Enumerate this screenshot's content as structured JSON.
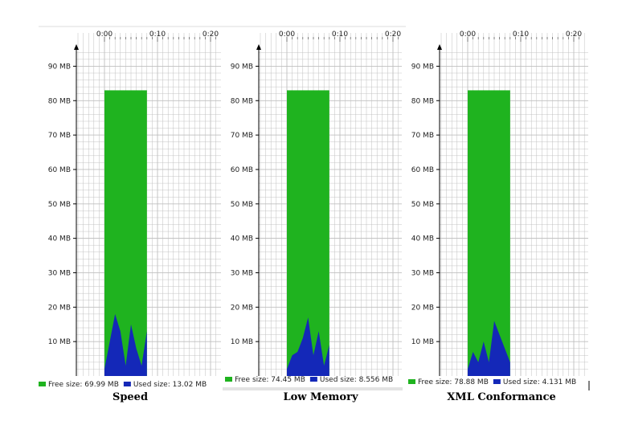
{
  "colors": {
    "free": "#1fb31f",
    "used": "#1428b8",
    "grid": "#bfbfbf",
    "axis": "#000000"
  },
  "chart_data": [
    {
      "type": "area",
      "caption": "Speed",
      "x_ticks": [
        "0:00",
        "0:10",
        "0:20"
      ],
      "y_ticks": [
        "10 MB",
        "20 MB",
        "30 MB",
        "40 MB",
        "50 MB",
        "60 MB",
        "70 MB",
        "80 MB",
        "90 MB"
      ],
      "ylim": [
        0,
        95
      ],
      "xlim": [
        0,
        20
      ],
      "total_heap_mb": 83,
      "series": [
        {
          "name": "Free size",
          "legend": "Free size: 69.99 MB"
        },
        {
          "name": "Used size",
          "legend": "Used size: 13.02 MB",
          "x": [
            0,
            1,
            2,
            3,
            4,
            5,
            6,
            7,
            8
          ],
          "y": [
            2,
            10,
            18,
            13,
            3,
            15,
            8,
            3,
            13
          ]
        }
      ]
    },
    {
      "type": "area",
      "caption": "Low Memory",
      "x_ticks": [
        "0:00",
        "0:10",
        "0:20"
      ],
      "y_ticks": [
        "10 MB",
        "20 MB",
        "30 MB",
        "40 MB",
        "50 MB",
        "60 MB",
        "70 MB",
        "80 MB",
        "90 MB"
      ],
      "ylim": [
        0,
        95
      ],
      "xlim": [
        0,
        20
      ],
      "total_heap_mb": 83,
      "series": [
        {
          "name": "Free size",
          "legend": "Free size: 74.45 MB"
        },
        {
          "name": "Used size",
          "legend": "Used size: 8.556 MB",
          "x": [
            0,
            1,
            2,
            3,
            4,
            5,
            6,
            7,
            8
          ],
          "y": [
            2,
            6,
            7,
            11,
            17,
            6,
            13,
            3,
            9
          ]
        }
      ]
    },
    {
      "type": "area",
      "caption": "XML Conformance",
      "x_ticks": [
        "0:00",
        "0:10",
        "0:20"
      ],
      "y_ticks": [
        "10 MB",
        "20 MB",
        "30 MB",
        "40 MB",
        "50 MB",
        "60 MB",
        "70 MB",
        "80 MB",
        "90 MB"
      ],
      "ylim": [
        0,
        95
      ],
      "xlim": [
        0,
        20
      ],
      "total_heap_mb": 83,
      "series": [
        {
          "name": "Free size",
          "legend": "Free size: 78.88 MB"
        },
        {
          "name": "Used size",
          "legend": "Used size: 4.131 MB",
          "x": [
            0,
            1,
            2,
            3,
            4,
            5,
            6,
            7,
            8
          ],
          "y": [
            2,
            7,
            4,
            10,
            4,
            16,
            12,
            8,
            4
          ]
        }
      ]
    }
  ]
}
